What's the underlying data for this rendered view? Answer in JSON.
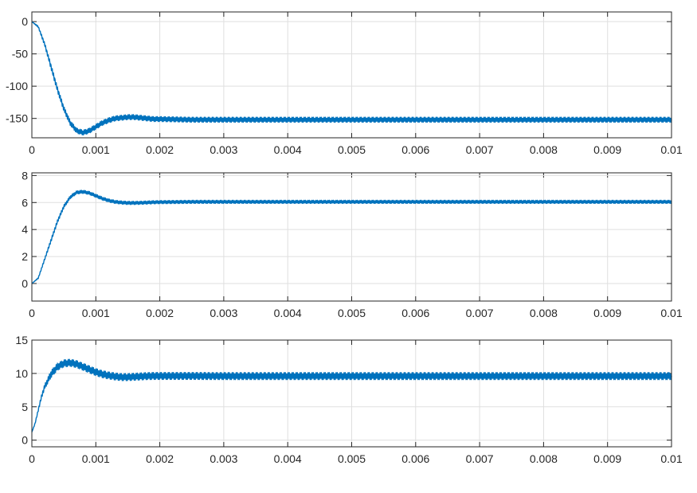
{
  "chart_data": [
    {
      "type": "line",
      "title": "",
      "xlabel": "",
      "ylabel": "",
      "xlim": [
        0,
        0.01
      ],
      "ylim": [
        -180,
        15
      ],
      "grid": true,
      "line_color": "#0072BD",
      "x_ticks": [
        "0",
        "0.001",
        "0.002",
        "0.003",
        "0.004",
        "0.005",
        "0.006",
        "0.007",
        "0.008",
        "0.009",
        "0.01"
      ],
      "y_ticks": [
        "0",
        "-50",
        "-100",
        "-150"
      ],
      "y_tick_values": [
        0,
        -50,
        -100,
        -150
      ],
      "series": [
        {
          "x": [
            0,
            0.0001,
            0.0002,
            0.0003,
            0.0004,
            0.0005,
            0.0006,
            0.0007,
            0.0008,
            0.0009,
            0.001,
            0.0011,
            0.0012,
            0.0013,
            0.0014,
            0.0015,
            0.0016,
            0.0017,
            0.0018,
            0.0019,
            0.002,
            0.0025,
            0.003,
            0.004,
            0.005,
            0.006,
            0.007,
            0.008,
            0.009,
            0.01
          ],
          "y": [
            0,
            -8,
            -35,
            -70,
            -105,
            -135,
            -157,
            -169,
            -172,
            -169,
            -163,
            -157,
            -153,
            -150,
            -149,
            -148,
            -148,
            -149,
            -150,
            -151,
            -151,
            -152,
            -152,
            -152,
            -152,
            -152,
            -152,
            -152,
            -152,
            -152
          ],
          "ripple": 4
        }
      ]
    },
    {
      "type": "line",
      "title": "",
      "xlabel": "",
      "ylabel": "",
      "xlim": [
        0,
        0.01
      ],
      "ylim": [
        -1.3,
        8.2
      ],
      "grid": true,
      "line_color": "#0072BD",
      "x_ticks": [
        "0",
        "0.001",
        "0.002",
        "0.003",
        "0.004",
        "0.005",
        "0.006",
        "0.007",
        "0.008",
        "0.009",
        "0.01"
      ],
      "y_ticks": [
        "8",
        "6",
        "4",
        "2",
        "0"
      ],
      "y_tick_values": [
        8,
        6,
        4,
        2,
        0
      ],
      "series": [
        {
          "x": [
            0,
            0.0001,
            0.0002,
            0.0003,
            0.0004,
            0.0005,
            0.0006,
            0.0007,
            0.0008,
            0.0009,
            0.001,
            0.0011,
            0.0012,
            0.0013,
            0.0014,
            0.0015,
            0.0016,
            0.0017,
            0.0018,
            0.0019,
            0.002,
            0.0025,
            0.003,
            0.004,
            0.005,
            0.006,
            0.007,
            0.008,
            0.009,
            0.01
          ],
          "y": [
            0,
            0.4,
            1.8,
            3.2,
            4.6,
            5.7,
            6.4,
            6.75,
            6.8,
            6.7,
            6.5,
            6.3,
            6.15,
            6.05,
            6.0,
            5.97,
            5.97,
            5.98,
            6.0,
            6.02,
            6.03,
            6.05,
            6.05,
            6.05,
            6.05,
            6.05,
            6.05,
            6.05,
            6.05,
            6.05
          ],
          "ripple": 0.12
        }
      ]
    },
    {
      "type": "line",
      "title": "",
      "xlabel": "",
      "ylabel": "",
      "xlim": [
        0,
        0.01
      ],
      "ylim": [
        -1,
        15
      ],
      "grid": true,
      "line_color": "#0072BD",
      "x_ticks": [
        "0",
        "0.001",
        "0.002",
        "0.003",
        "0.004",
        "0.005",
        "0.006",
        "0.007",
        "0.008",
        "0.009",
        "0.01"
      ],
      "y_ticks": [
        "15",
        "10",
        "5",
        "0"
      ],
      "y_tick_values": [
        15,
        10,
        5,
        0
      ],
      "series": [
        {
          "x": [
            0,
            5e-05,
            0.0001,
            0.00015,
            0.0002,
            0.0003,
            0.0004,
            0.0005,
            0.0006,
            0.0007,
            0.0008,
            0.0009,
            0.001,
            0.0011,
            0.0012,
            0.0013,
            0.0014,
            0.0015,
            0.0016,
            0.0017,
            0.0018,
            0.0019,
            0.002,
            0.0025,
            0.003,
            0.004,
            0.005,
            0.006,
            0.007,
            0.008,
            0.009,
            0.01
          ],
          "y": [
            1.2,
            2.5,
            4.5,
            6.5,
            8.0,
            9.9,
            11.0,
            11.5,
            11.6,
            11.4,
            11.0,
            10.6,
            10.2,
            9.9,
            9.7,
            9.55,
            9.45,
            9.45,
            9.5,
            9.55,
            9.6,
            9.62,
            9.62,
            9.62,
            9.6,
            9.6,
            9.6,
            9.6,
            9.6,
            9.6,
            9.6,
            9.6
          ],
          "ripple": 0.55
        }
      ]
    }
  ]
}
